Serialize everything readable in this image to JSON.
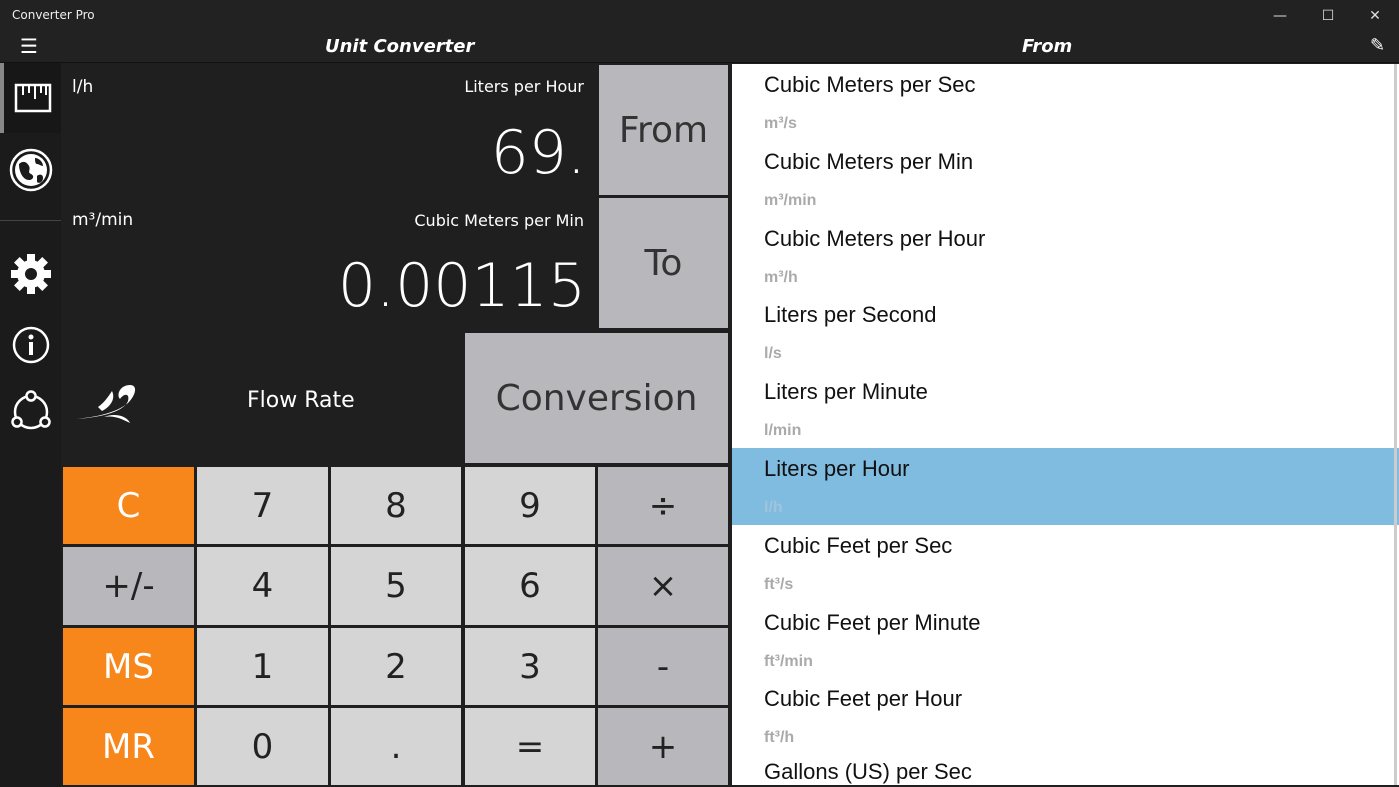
{
  "window": {
    "title": "Converter Pro",
    "minimize": "—",
    "maximize": "☐",
    "close": "✕"
  },
  "header": {
    "menu_icon": "☰",
    "title": "Unit Converter",
    "list_title": "From",
    "pen_icon": "✎"
  },
  "sidebar": {
    "items": [
      {
        "icon": "ruler-icon"
      },
      {
        "icon": "globe-icon"
      },
      {
        "icon": "gear-icon"
      },
      {
        "icon": "info-icon"
      },
      {
        "icon": "share-icon"
      }
    ]
  },
  "display": {
    "from_abbr": "l/h",
    "from_name": "Liters per Hour",
    "from_value": "69.",
    "to_abbr": "m³/min",
    "to_name": "Cubic Meters per Min",
    "to_value": "0.00115",
    "category": "Flow Rate",
    "from_button": "From",
    "to_button": "To",
    "conversion_button": "Conversion"
  },
  "keypad": [
    [
      "C",
      "7",
      "8",
      "9",
      "÷"
    ],
    [
      "+/-",
      "4",
      "5",
      "6",
      "×"
    ],
    [
      "MS",
      "1",
      "2",
      "3",
      "-"
    ],
    [
      "MR",
      "0",
      ".",
      "=",
      "+"
    ]
  ],
  "colors": {
    "orange": "#f7861b",
    "selected": "#80bbe0"
  },
  "list": {
    "selected_index": 5,
    "items": [
      {
        "name": "Cubic Meters per Sec",
        "unit": "m³/s"
      },
      {
        "name": "Cubic Meters per Min",
        "unit": "m³/min"
      },
      {
        "name": "Cubic Meters per Hour",
        "unit": "m³/h"
      },
      {
        "name": "Liters per Second",
        "unit": "l/s"
      },
      {
        "name": "Liters per Minute",
        "unit": "l/min"
      },
      {
        "name": "Liters per Hour",
        "unit": "l/h"
      },
      {
        "name": "Cubic Feet per Sec",
        "unit": "ft³/s"
      },
      {
        "name": "Cubic Feet per Minute",
        "unit": "ft³/min"
      },
      {
        "name": "Cubic Feet per Hour",
        "unit": "ft³/h"
      },
      {
        "name": "Gallons (US) per Sec",
        "unit": ""
      }
    ]
  }
}
